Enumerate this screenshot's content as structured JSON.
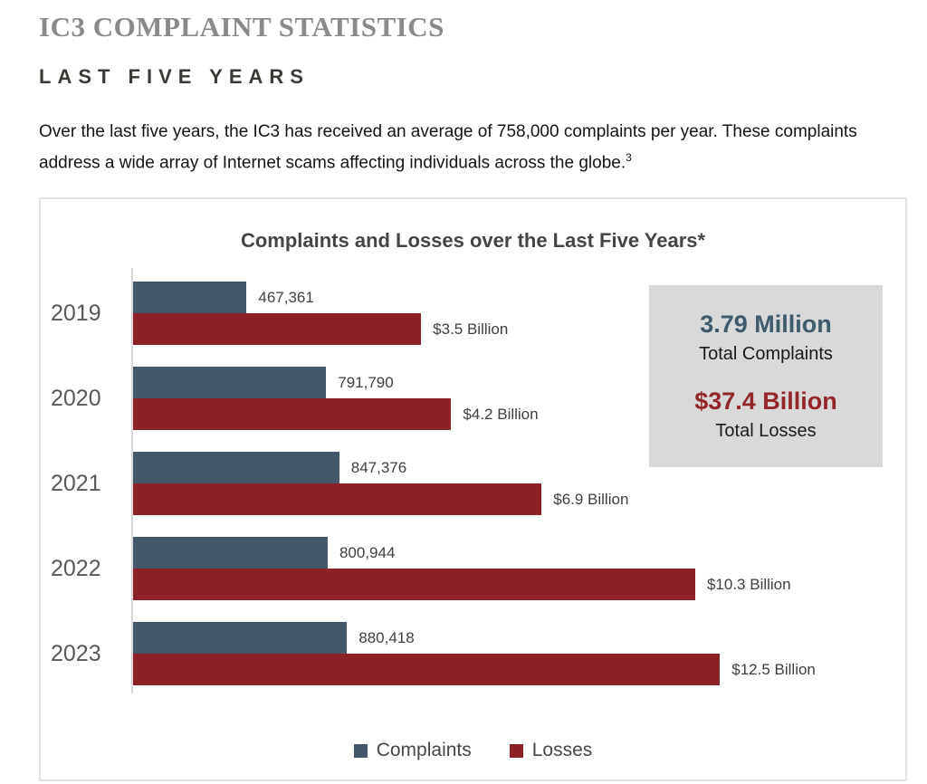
{
  "header": {
    "title": "IC3 COMPLAINT STATISTICS",
    "subtitle": "LAST FIVE YEARS"
  },
  "intro": {
    "text": "Over the last five years, the IC3 has received an average of 758,000 complaints per year. These complaints address a wide array of Internet scams affecting individuals across the globe.",
    "footnote_marker": "3"
  },
  "chart_data": {
    "type": "bar",
    "orientation": "horizontal",
    "title": "Complaints and Losses over the Last Five Years*",
    "categories": [
      "2019",
      "2020",
      "2021",
      "2022",
      "2023"
    ],
    "series": [
      {
        "name": "Complaints",
        "color": "#44586a",
        "unit": "complaints",
        "values": [
          467361,
          791790,
          847376,
          800944,
          880418
        ],
        "labels": [
          "467,361",
          "791,790",
          "847,376",
          "800,944",
          "880,418"
        ],
        "bar_length_pct": [
          14.7,
          25.0,
          26.7,
          25.2,
          27.7
        ]
      },
      {
        "name": "Losses",
        "color": "#8c2127",
        "unit": "USD billions",
        "values": [
          3.5,
          4.2,
          6.9,
          10.3,
          12.5
        ],
        "labels": [
          "$3.5 Billion",
          "$4.2 Billion",
          "$6.9 Billion",
          "$10.3 Billion",
          "$12.5 Billion"
        ],
        "bar_length_pct": [
          37.3,
          41.2,
          52.9,
          72.8,
          76.0
        ]
      }
    ],
    "legend_position": "bottom",
    "grid": false,
    "summary_box": {
      "background": "#d9d9d9",
      "total_complaints_value": "3.79 Million",
      "total_complaints_label": "Total Complaints",
      "total_complaints_color": "#3e5a6d",
      "total_losses_value": "$37.4 Billion",
      "total_losses_label": "Total Losses",
      "total_losses_color": "#93262b"
    }
  }
}
